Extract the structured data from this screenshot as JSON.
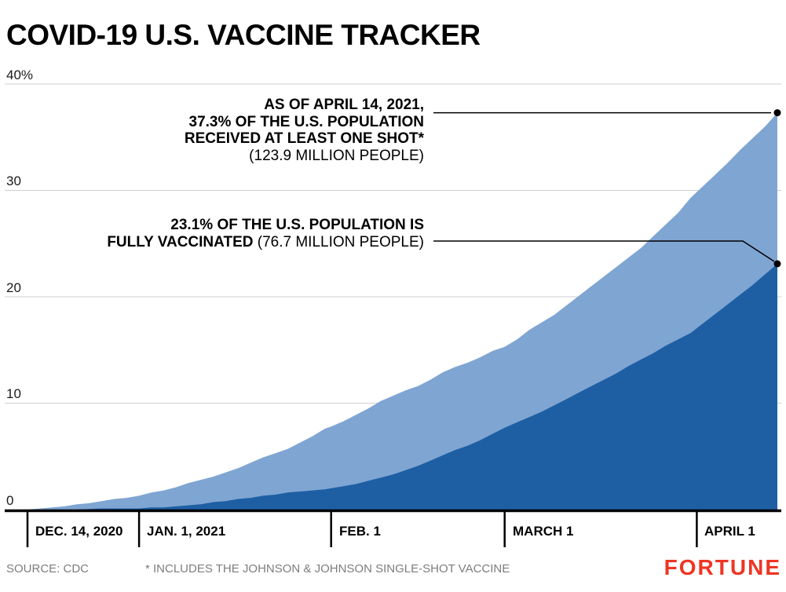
{
  "page": {
    "title": "COVID-19 U.S. VACCINE TRACKER"
  },
  "annotations": {
    "one_shot": {
      "line1": "AS OF APRIL 14, 2021,",
      "line2": "37.3% OF THE U.S. POPULATION",
      "line3": "RECEIVED AT LEAST ONE SHOT*",
      "line4": "(123.9 MILLION PEOPLE)"
    },
    "fully_vaccinated": {
      "line1": "23.1% OF THE U.S. POPULATION IS",
      "line2_bold": "FULLY VACCINATED",
      "line2_regular": " (76.7 MILLION PEOPLE)"
    }
  },
  "footer": {
    "source": "SOURCE: CDC",
    "note": "* INCLUDES THE JOHNSON & JOHNSON SINGLE-SHOT VACCINE",
    "brand": "FORTUNE"
  },
  "chart_data": {
    "type": "area",
    "title": "COVID-19 U.S. VACCINE TRACKER",
    "x_unit": "days since Dec. 14, 2020",
    "x_range": [
      0,
      121
    ],
    "ylim": [
      0,
      40
    ],
    "grid": true,
    "legend_position": "inline-annotations",
    "ytick_labels": [
      "40%",
      "30",
      "20",
      "10",
      "0"
    ],
    "ytick_values": [
      40,
      30,
      20,
      10,
      0
    ],
    "xticks": [
      {
        "day": 0,
        "label": "DEC. 14, 2020"
      },
      {
        "day": 18,
        "label": "JAN. 1, 2021"
      },
      {
        "day": 49,
        "label": "FEB. 1"
      },
      {
        "day": 77,
        "label": "MARCH 1"
      },
      {
        "day": 108,
        "label": "APRIL 1"
      }
    ],
    "colors": {
      "one_shot": "#7FA5D2",
      "fully_vaccinated": "#1E5FA4",
      "dot": "#000000"
    },
    "series": [
      {
        "name": "Received at least one shot",
        "final_pct": 37.3,
        "final_people": "123.9 million",
        "points": [
          [
            0,
            0.0
          ],
          [
            2,
            0.1
          ],
          [
            4,
            0.2
          ],
          [
            6,
            0.3
          ],
          [
            8,
            0.5
          ],
          [
            10,
            0.6
          ],
          [
            12,
            0.8
          ],
          [
            14,
            1.0
          ],
          [
            16,
            1.1
          ],
          [
            18,
            1.3
          ],
          [
            20,
            1.6
          ],
          [
            22,
            1.8
          ],
          [
            24,
            2.1
          ],
          [
            26,
            2.5
          ],
          [
            28,
            2.8
          ],
          [
            30,
            3.1
          ],
          [
            32,
            3.5
          ],
          [
            34,
            3.9
          ],
          [
            36,
            4.4
          ],
          [
            38,
            4.9
          ],
          [
            40,
            5.3
          ],
          [
            42,
            5.7
          ],
          [
            44,
            6.3
          ],
          [
            46,
            6.9
          ],
          [
            48,
            7.6
          ],
          [
            49,
            7.8
          ],
          [
            51,
            8.3
          ],
          [
            53,
            8.9
          ],
          [
            55,
            9.5
          ],
          [
            57,
            10.2
          ],
          [
            59,
            10.7
          ],
          [
            61,
            11.2
          ],
          [
            63,
            11.6
          ],
          [
            65,
            12.2
          ],
          [
            67,
            12.9
          ],
          [
            69,
            13.4
          ],
          [
            71,
            13.8
          ],
          [
            73,
            14.3
          ],
          [
            75,
            14.9
          ],
          [
            77,
            15.3
          ],
          [
            79,
            16.0
          ],
          [
            81,
            16.9
          ],
          [
            83,
            17.6
          ],
          [
            85,
            18.3
          ],
          [
            87,
            19.2
          ],
          [
            89,
            20.1
          ],
          [
            91,
            21.0
          ],
          [
            93,
            21.9
          ],
          [
            95,
            22.8
          ],
          [
            97,
            23.7
          ],
          [
            99,
            24.6
          ],
          [
            101,
            25.7
          ],
          [
            103,
            26.8
          ],
          [
            105,
            27.9
          ],
          [
            107,
            29.3
          ],
          [
            109,
            30.4
          ],
          [
            111,
            31.5
          ],
          [
            113,
            32.6
          ],
          [
            115,
            33.8
          ],
          [
            117,
            34.9
          ],
          [
            119,
            36.0
          ],
          [
            121,
            37.3
          ]
        ]
      },
      {
        "name": "Fully vaccinated",
        "final_pct": 23.1,
        "final_people": "76.7 million",
        "points": [
          [
            0,
            0.0
          ],
          [
            4,
            0.0
          ],
          [
            8,
            0.0
          ],
          [
            12,
            0.1
          ],
          [
            16,
            0.1
          ],
          [
            18,
            0.1
          ],
          [
            20,
            0.2
          ],
          [
            22,
            0.2
          ],
          [
            24,
            0.3
          ],
          [
            26,
            0.4
          ],
          [
            28,
            0.5
          ],
          [
            30,
            0.7
          ],
          [
            32,
            0.8
          ],
          [
            34,
            1.0
          ],
          [
            36,
            1.1
          ],
          [
            38,
            1.3
          ],
          [
            40,
            1.4
          ],
          [
            42,
            1.6
          ],
          [
            44,
            1.7
          ],
          [
            46,
            1.8
          ],
          [
            48,
            1.9
          ],
          [
            49,
            2.0
          ],
          [
            51,
            2.2
          ],
          [
            53,
            2.4
          ],
          [
            55,
            2.7
          ],
          [
            57,
            3.0
          ],
          [
            59,
            3.3
          ],
          [
            61,
            3.7
          ],
          [
            63,
            4.1
          ],
          [
            65,
            4.6
          ],
          [
            67,
            5.1
          ],
          [
            69,
            5.6
          ],
          [
            71,
            6.0
          ],
          [
            73,
            6.5
          ],
          [
            75,
            7.1
          ],
          [
            77,
            7.7
          ],
          [
            79,
            8.2
          ],
          [
            81,
            8.7
          ],
          [
            83,
            9.2
          ],
          [
            85,
            9.8
          ],
          [
            87,
            10.4
          ],
          [
            89,
            11.0
          ],
          [
            91,
            11.6
          ],
          [
            93,
            12.2
          ],
          [
            95,
            12.8
          ],
          [
            97,
            13.5
          ],
          [
            99,
            14.1
          ],
          [
            101,
            14.7
          ],
          [
            103,
            15.4
          ],
          [
            105,
            16.0
          ],
          [
            107,
            16.6
          ],
          [
            109,
            17.5
          ],
          [
            111,
            18.4
          ],
          [
            113,
            19.3
          ],
          [
            115,
            20.2
          ],
          [
            117,
            21.1
          ],
          [
            119,
            22.1
          ],
          [
            121,
            23.1
          ]
        ]
      }
    ]
  }
}
